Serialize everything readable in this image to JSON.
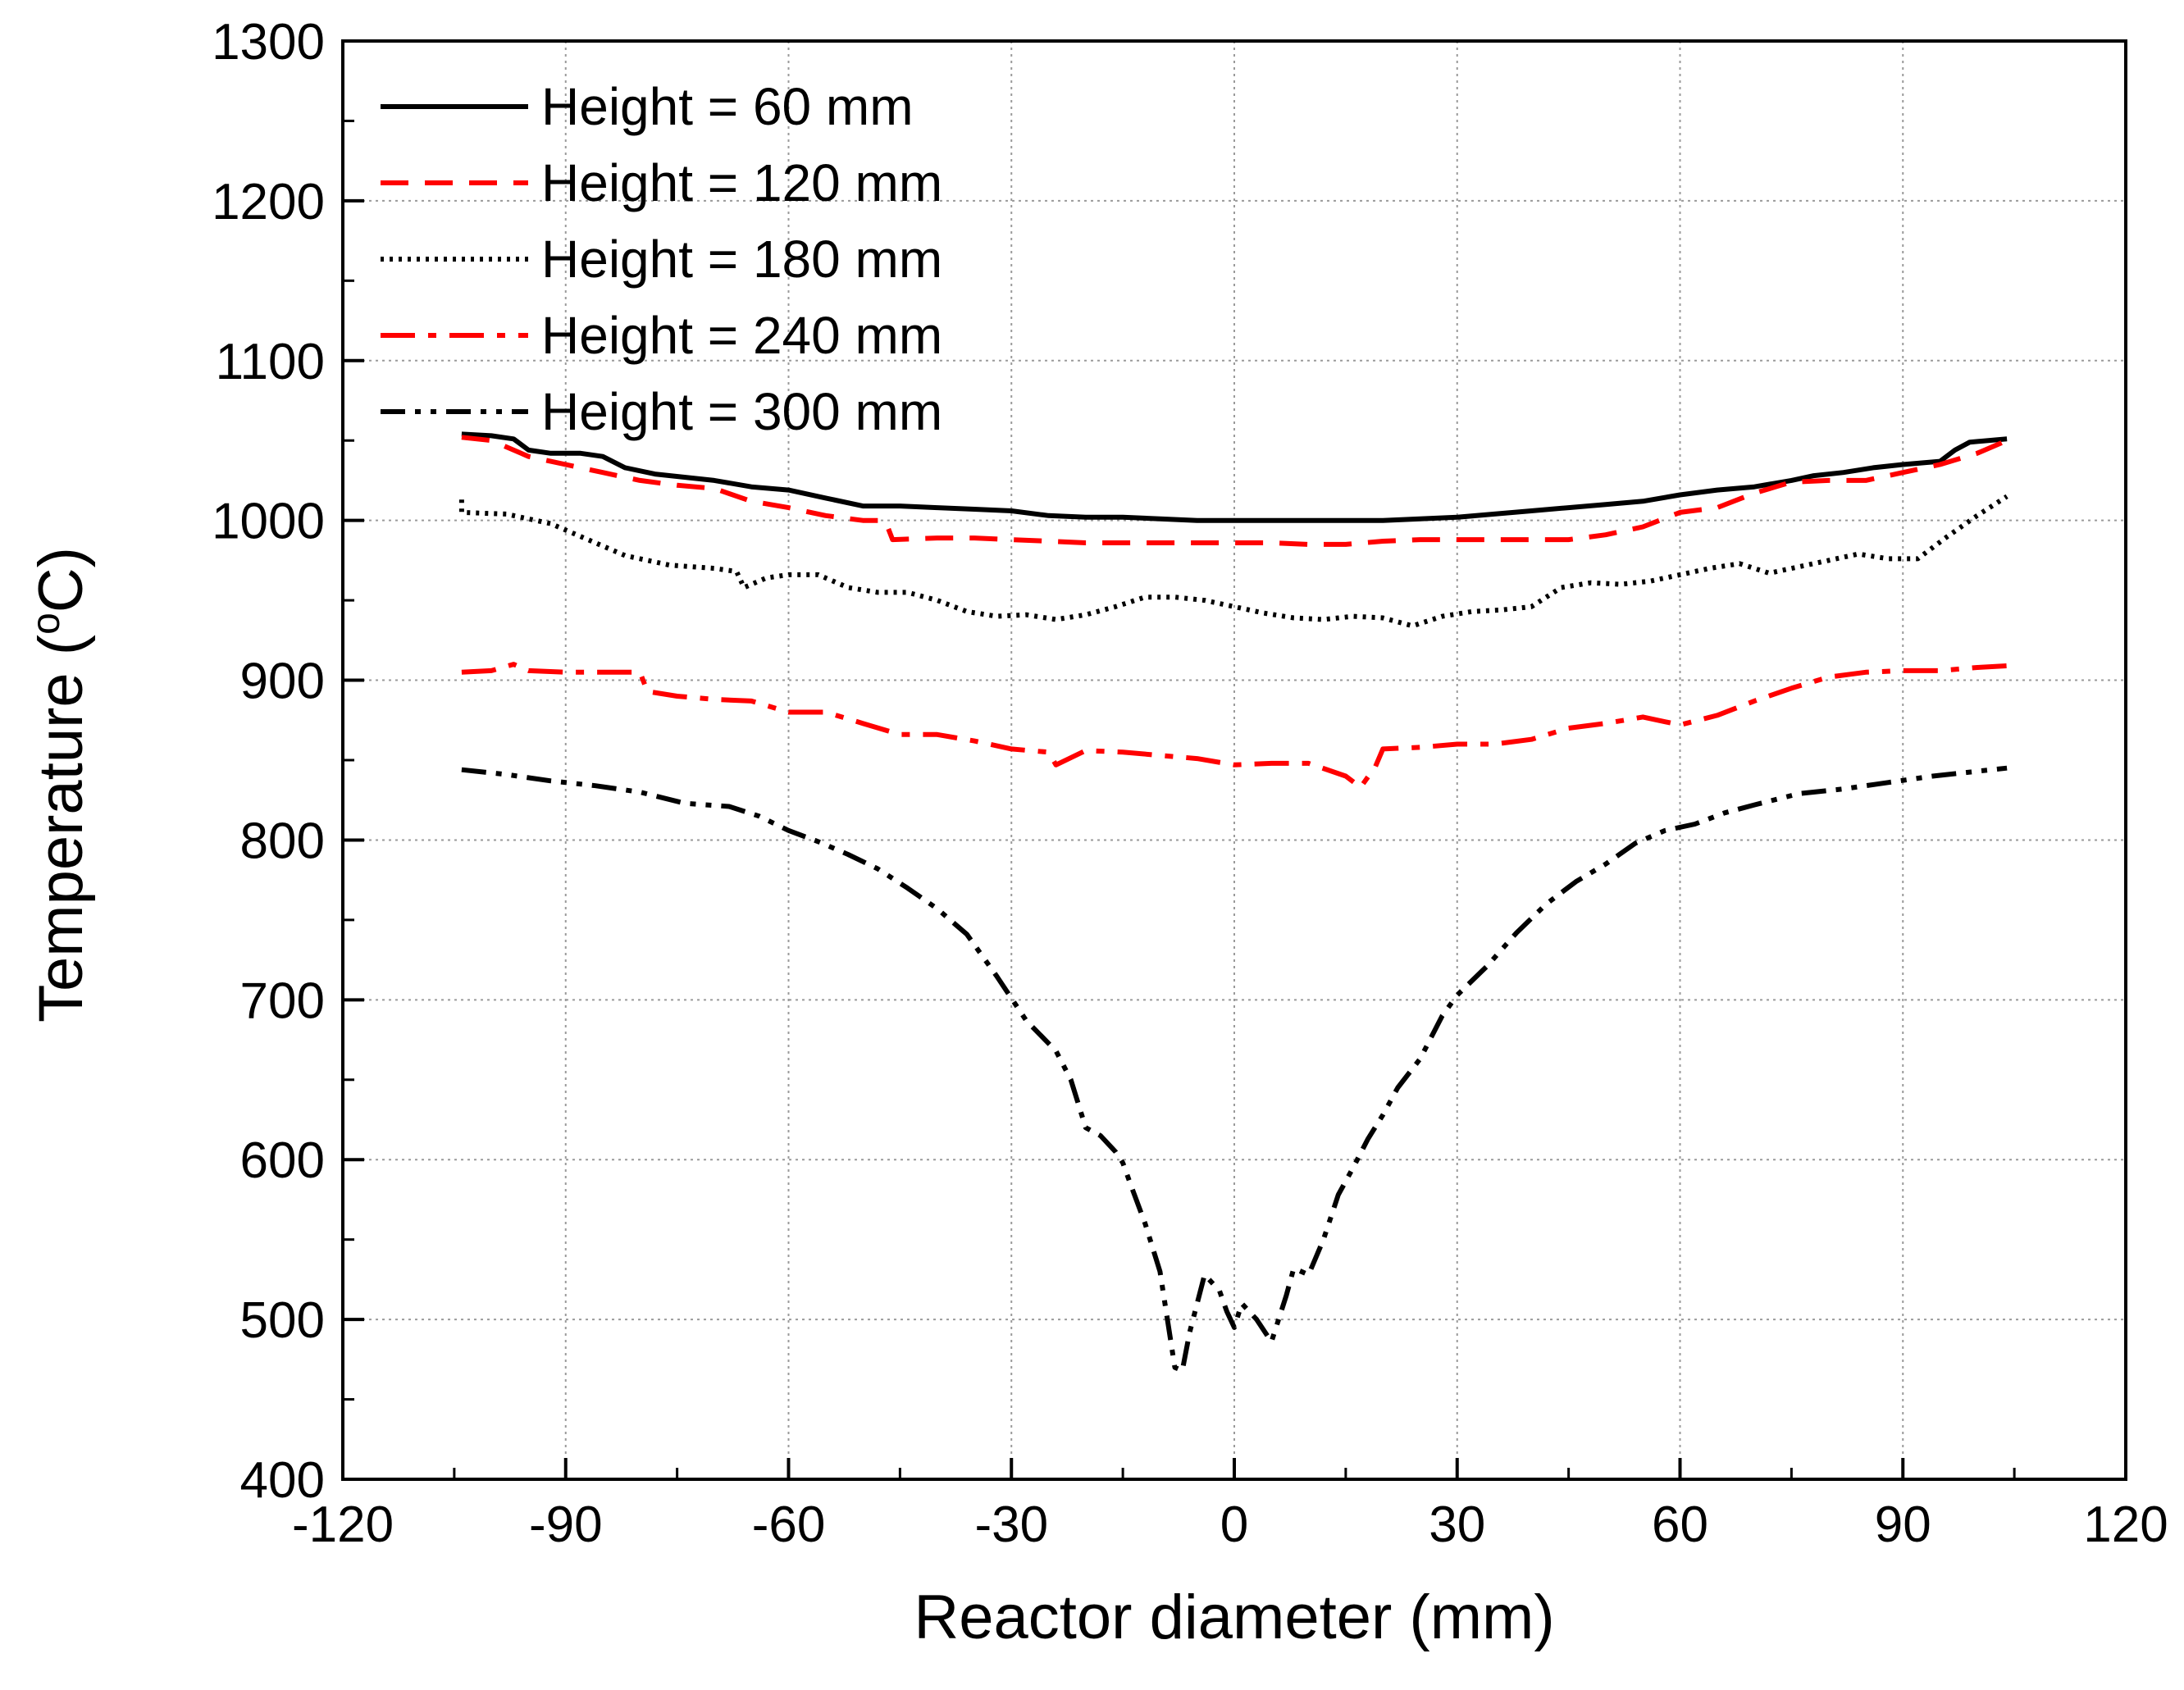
{
  "chart_data": {
    "type": "line",
    "title": "",
    "xlabel": "Reactor diameter (mm)",
    "ylabel": "Temperature (°C)",
    "ylabel_parts": {
      "prefix": "Temperature (",
      "superscript": "o",
      "suffix": "C)"
    },
    "xlim": [
      -120,
      120
    ],
    "ylim": [
      400,
      1300
    ],
    "xticks": [
      -120,
      -90,
      -60,
      -30,
      0,
      30,
      60,
      90,
      120
    ],
    "yticks": [
      400,
      500,
      600,
      700,
      800,
      900,
      1000,
      1100,
      1200,
      1300
    ],
    "grid": true,
    "legend_position": "top-left",
    "series": [
      {
        "name": "Height = 60 mm",
        "style": "solid",
        "color": "#000000",
        "points": [
          [
            -104,
            1054
          ],
          [
            -100,
            1053
          ],
          [
            -97,
            1051
          ],
          [
            -95,
            1044
          ],
          [
            -92,
            1042
          ],
          [
            -88,
            1042
          ],
          [
            -85,
            1040
          ],
          [
            -82,
            1033
          ],
          [
            -78,
            1029
          ],
          [
            -74,
            1027
          ],
          [
            -70,
            1025
          ],
          [
            -65,
            1021
          ],
          [
            -60,
            1019
          ],
          [
            -55,
            1014
          ],
          [
            -50,
            1009
          ],
          [
            -45,
            1009
          ],
          [
            -40,
            1008
          ],
          [
            -35,
            1007
          ],
          [
            -30,
            1006
          ],
          [
            -25,
            1003
          ],
          [
            -20,
            1002
          ],
          [
            -15,
            1002
          ],
          [
            -10,
            1001
          ],
          [
            -5,
            1000
          ],
          [
            0,
            1000
          ],
          [
            5,
            1000
          ],
          [
            10,
            1000
          ],
          [
            15,
            1000
          ],
          [
            20,
            1000
          ],
          [
            25,
            1001
          ],
          [
            30,
            1002
          ],
          [
            35,
            1004
          ],
          [
            40,
            1006
          ],
          [
            45,
            1008
          ],
          [
            50,
            1010
          ],
          [
            55,
            1012
          ],
          [
            60,
            1016
          ],
          [
            65,
            1019
          ],
          [
            70,
            1021
          ],
          [
            75,
            1025
          ],
          [
            78,
            1028
          ],
          [
            82,
            1030
          ],
          [
            86,
            1033
          ],
          [
            90,
            1035
          ],
          [
            95,
            1037
          ],
          [
            97,
            1044
          ],
          [
            99,
            1049
          ],
          [
            104,
            1051
          ]
        ]
      },
      {
        "name": "Height = 120 mm",
        "style": "dashed",
        "color": "#ff0000",
        "points": [
          [
            -104,
            1052
          ],
          [
            -100,
            1050
          ],
          [
            -95,
            1040
          ],
          [
            -90,
            1035
          ],
          [
            -85,
            1030
          ],
          [
            -80,
            1025
          ],
          [
            -75,
            1022
          ],
          [
            -70,
            1020
          ],
          [
            -65,
            1012
          ],
          [
            -60,
            1008
          ],
          [
            -55,
            1003
          ],
          [
            -50,
            1000
          ],
          [
            -47,
            1000
          ],
          [
            -46,
            988
          ],
          [
            -40,
            989
          ],
          [
            -35,
            989
          ],
          [
            -30,
            988
          ],
          [
            -25,
            987
          ],
          [
            -20,
            986
          ],
          [
            -15,
            986
          ],
          [
            -10,
            986
          ],
          [
            -5,
            986
          ],
          [
            0,
            986
          ],
          [
            5,
            986
          ],
          [
            10,
            985
          ],
          [
            15,
            985
          ],
          [
            20,
            987
          ],
          [
            25,
            988
          ],
          [
            30,
            988
          ],
          [
            35,
            988
          ],
          [
            40,
            988
          ],
          [
            45,
            988
          ],
          [
            50,
            991
          ],
          [
            55,
            996
          ],
          [
            60,
            1005
          ],
          [
            65,
            1008
          ],
          [
            70,
            1017
          ],
          [
            75,
            1024
          ],
          [
            80,
            1025
          ],
          [
            85,
            1025
          ],
          [
            90,
            1030
          ],
          [
            95,
            1035
          ],
          [
            100,
            1042
          ],
          [
            104,
            1050
          ]
        ]
      },
      {
        "name": "Height = 180 mm",
        "style": "dotted",
        "color": "#000000",
        "points": [
          [
            -104,
            1013
          ],
          [
            -104,
            1005
          ],
          [
            -98,
            1004
          ],
          [
            -92,
            998
          ],
          [
            -87,
            988
          ],
          [
            -82,
            978
          ],
          [
            -76,
            972
          ],
          [
            -70,
            970
          ],
          [
            -67,
            968
          ],
          [
            -66,
            958
          ],
          [
            -63,
            964
          ],
          [
            -60,
            966
          ],
          [
            -56,
            966
          ],
          [
            -52,
            958
          ],
          [
            -48,
            955
          ],
          [
            -44,
            955
          ],
          [
            -40,
            950
          ],
          [
            -36,
            943
          ],
          [
            -32,
            940
          ],
          [
            -28,
            941
          ],
          [
            -24,
            938
          ],
          [
            -20,
            941
          ],
          [
            -16,
            946
          ],
          [
            -12,
            952
          ],
          [
            -8,
            952
          ],
          [
            -4,
            950
          ],
          [
            0,
            946
          ],
          [
            4,
            942
          ],
          [
            8,
            939
          ],
          [
            12,
            938
          ],
          [
            16,
            940
          ],
          [
            20,
            939
          ],
          [
            24,
            934
          ],
          [
            28,
            940
          ],
          [
            32,
            943
          ],
          [
            36,
            944
          ],
          [
            40,
            946
          ],
          [
            44,
            958
          ],
          [
            48,
            961
          ],
          [
            52,
            960
          ],
          [
            56,
            962
          ],
          [
            60,
            966
          ],
          [
            64,
            970
          ],
          [
            68,
            973
          ],
          [
            72,
            967
          ],
          [
            76,
            971
          ],
          [
            80,
            975
          ],
          [
            84,
            979
          ],
          [
            88,
            976
          ],
          [
            92,
            976
          ],
          [
            96,
            990
          ],
          [
            100,
            1003
          ],
          [
            104,
            1015
          ]
        ]
      },
      {
        "name": "Height = 240 mm",
        "style": "dashdot",
        "color": "#ff0000",
        "points": [
          [
            -104,
            905
          ],
          [
            -100,
            906
          ],
          [
            -97,
            910
          ],
          [
            -95,
            906
          ],
          [
            -90,
            905
          ],
          [
            -85,
            905
          ],
          [
            -80,
            905
          ],
          [
            -79,
            893
          ],
          [
            -75,
            890
          ],
          [
            -70,
            888
          ],
          [
            -65,
            887
          ],
          [
            -60,
            880
          ],
          [
            -55,
            880
          ],
          [
            -50,
            873
          ],
          [
            -45,
            866
          ],
          [
            -40,
            866
          ],
          [
            -35,
            862
          ],
          [
            -30,
            857
          ],
          [
            -25,
            855
          ],
          [
            -24,
            847
          ],
          [
            -20,
            856
          ],
          [
            -15,
            855
          ],
          [
            -10,
            853
          ],
          [
            -5,
            851
          ],
          [
            0,
            847
          ],
          [
            5,
            848
          ],
          [
            10,
            848
          ],
          [
            15,
            840
          ],
          [
            17,
            833
          ],
          [
            19,
            846
          ],
          [
            20,
            857
          ],
          [
            25,
            858
          ],
          [
            30,
            860
          ],
          [
            35,
            860
          ],
          [
            40,
            863
          ],
          [
            45,
            870
          ],
          [
            50,
            873
          ],
          [
            55,
            877
          ],
          [
            60,
            872
          ],
          [
            65,
            878
          ],
          [
            70,
            887
          ],
          [
            75,
            895
          ],
          [
            80,
            902
          ],
          [
            85,
            905
          ],
          [
            90,
            906
          ],
          [
            95,
            906
          ],
          [
            100,
            908
          ],
          [
            104,
            909
          ]
        ]
      },
      {
        "name": "Height = 300 mm",
        "style": "dashdotdot",
        "color": "#000000",
        "points": [
          [
            -104,
            844
          ],
          [
            -98,
            841
          ],
          [
            -92,
            837
          ],
          [
            -86,
            834
          ],
          [
            -80,
            830
          ],
          [
            -74,
            823
          ],
          [
            -68,
            821
          ],
          [
            -64,
            815
          ],
          [
            -60,
            806
          ],
          [
            -56,
            799
          ],
          [
            -52,
            791
          ],
          [
            -48,
            782
          ],
          [
            -44,
            770
          ],
          [
            -40,
            757
          ],
          [
            -36,
            741
          ],
          [
            -32,
            715
          ],
          [
            -28,
            687
          ],
          [
            -24,
            668
          ],
          [
            -22,
            650
          ],
          [
            -20,
            620
          ],
          [
            -18,
            615
          ],
          [
            -16,
            605
          ],
          [
            -15,
            598
          ],
          [
            -14,
            585
          ],
          [
            -12,
            560
          ],
          [
            -10,
            530
          ],
          [
            -8,
            470
          ],
          [
            -7,
            468
          ],
          [
            -6,
            492
          ],
          [
            -4,
            528
          ],
          [
            -2,
            518
          ],
          [
            -1,
            505
          ],
          [
            0,
            495
          ],
          [
            1,
            510
          ],
          [
            3,
            500
          ],
          [
            5,
            486
          ],
          [
            7,
            515
          ],
          [
            8,
            532
          ],
          [
            10,
            528
          ],
          [
            12,
            550
          ],
          [
            14,
            578
          ],
          [
            16,
            595
          ],
          [
            18,
            613
          ],
          [
            20,
            628
          ],
          [
            22,
            645
          ],
          [
            25,
            663
          ],
          [
            28,
            690
          ],
          [
            30,
            703
          ],
          [
            34,
            721
          ],
          [
            38,
            742
          ],
          [
            42,
            760
          ],
          [
            46,
            774
          ],
          [
            50,
            785
          ],
          [
            54,
            798
          ],
          [
            58,
            806
          ],
          [
            62,
            810
          ],
          [
            66,
            817
          ],
          [
            70,
            822
          ],
          [
            76,
            829
          ],
          [
            82,
            832
          ],
          [
            88,
            836
          ],
          [
            94,
            840
          ],
          [
            100,
            843
          ],
          [
            104,
            845
          ]
        ]
      }
    ]
  }
}
